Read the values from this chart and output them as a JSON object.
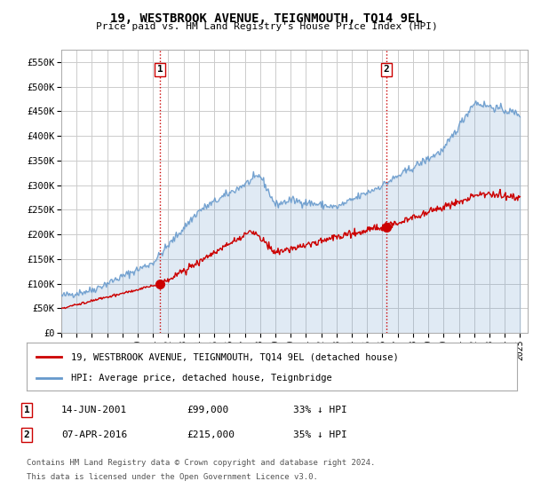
{
  "title": "19, WESTBROOK AVENUE, TEIGNMOUTH, TQ14 9EL",
  "subtitle": "Price paid vs. HM Land Registry's House Price Index (HPI)",
  "ylabel_ticks": [
    "£0",
    "£50K",
    "£100K",
    "£150K",
    "£200K",
    "£250K",
    "£300K",
    "£350K",
    "£400K",
    "£450K",
    "£500K",
    "£550K"
  ],
  "ytick_vals": [
    0,
    50000,
    100000,
    150000,
    200000,
    250000,
    300000,
    350000,
    400000,
    450000,
    500000,
    550000
  ],
  "ylim": [
    0,
    575000
  ],
  "xlim_start": 1995.0,
  "xlim_end": 2025.5,
  "sale1_x": 2001.45,
  "sale1_y": 99000,
  "sale2_x": 2016.27,
  "sale2_y": 215000,
  "vline_color": "#cc0000",
  "hpi_color": "#6699cc",
  "price_color": "#cc0000",
  "background_color": "#ffffff",
  "grid_color": "#cccccc",
  "legend_label_price": "19, WESTBROOK AVENUE, TEIGNMOUTH, TQ14 9EL (detached house)",
  "legend_label_hpi": "HPI: Average price, detached house, Teignbridge",
  "sale1_date": "14-JUN-2001",
  "sale1_price": "£99,000",
  "sale1_hpi": "33% ↓ HPI",
  "sale2_date": "07-APR-2016",
  "sale2_price": "£215,000",
  "sale2_hpi": "35% ↓ HPI",
  "footer1": "Contains HM Land Registry data © Crown copyright and database right 2024.",
  "footer2": "This data is licensed under the Open Government Licence v3.0."
}
